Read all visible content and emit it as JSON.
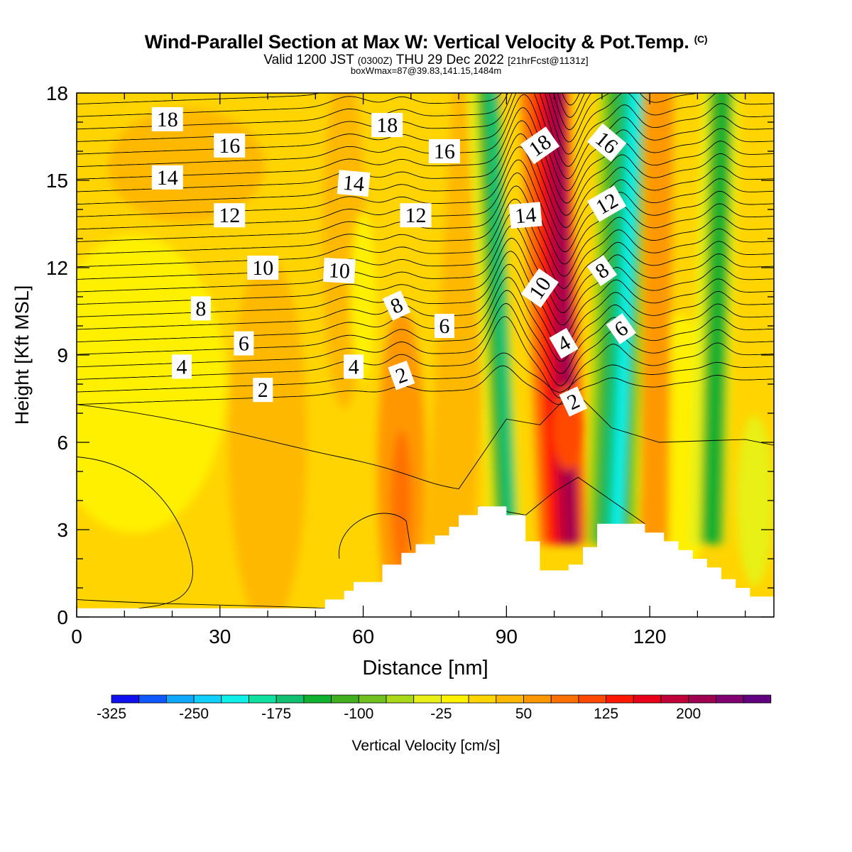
{
  "header": {
    "title_main": "Wind-Parallel Section at Max W: Vertical Velocity & Pot.Temp.",
    "title_mark": "(C)",
    "valid_prefix": "Valid 1200 JST",
    "valid_utc": "(0300Z)",
    "valid_date": "THU 29 Dec 2022",
    "forecast_info": "[21hrFcst@1131z]",
    "box_info": "boxWmax=87@39.83,141.15,1484m"
  },
  "colorbar": {
    "label": "Vertical Velocity [cm/s]",
    "colors": [
      "#1010f0",
      "#1058ff",
      "#10a8ff",
      "#10d0ff",
      "#10f0e8",
      "#10e0a0",
      "#10c070",
      "#10b030",
      "#40b020",
      "#70c020",
      "#a8d818",
      "#e8f018",
      "#fff000",
      "#ffd400",
      "#ffb800",
      "#ff9800",
      "#ff7000",
      "#ff4800",
      "#ff1800",
      "#e80018",
      "#c00038",
      "#a00050",
      "#800070",
      "#600080"
    ],
    "tick_labels": [
      "-325",
      "-250",
      "-175",
      "-100",
      "-25",
      "50",
      "125",
      "200"
    ],
    "tick_values": [
      -325,
      -250,
      -175,
      -100,
      -25,
      50,
      125,
      200
    ],
    "min": -325,
    "step": 25
  },
  "chart_data": {
    "type": "heatmap",
    "title": "Wind-Parallel Section at Max W: Vertical Velocity & Pot.Temp. (C)",
    "xlabel": "Distance [nm]",
    "ylabel": "Height [Kft MSL]",
    "xlim": [
      0,
      146
    ],
    "ylim": [
      0,
      18
    ],
    "x_ticks": [
      0,
      30,
      60,
      90,
      120
    ],
    "y_ticks": [
      0,
      3,
      6,
      9,
      12,
      15,
      18
    ],
    "colorbar_label": "Vertical Velocity [cm/s]",
    "terrain": [
      [
        0,
        0.3
      ],
      [
        52,
        0.3
      ],
      [
        52,
        0.6
      ],
      [
        56,
        0.6
      ],
      [
        56,
        0.9
      ],
      [
        58,
        0.9
      ],
      [
        58,
        1.2
      ],
      [
        64,
        1.2
      ],
      [
        64,
        1.8
      ],
      [
        68,
        1.8
      ],
      [
        68,
        2.2
      ],
      [
        71,
        2.2
      ],
      [
        71,
        2.5
      ],
      [
        75,
        2.5
      ],
      [
        75,
        2.8
      ],
      [
        78,
        2.8
      ],
      [
        78,
        3.1
      ],
      [
        80,
        3.1
      ],
      [
        80,
        3.5
      ],
      [
        84,
        3.5
      ],
      [
        84,
        3.8
      ],
      [
        90,
        3.8
      ],
      [
        90,
        3.5
      ],
      [
        94,
        3.5
      ],
      [
        94,
        2.6
      ],
      [
        97,
        2.6
      ],
      [
        97,
        1.6
      ],
      [
        103,
        1.6
      ],
      [
        103,
        1.8
      ],
      [
        106,
        1.8
      ],
      [
        106,
        2.4
      ],
      [
        109,
        2.4
      ],
      [
        109,
        3.2
      ],
      [
        119,
        3.2
      ],
      [
        119,
        2.9
      ],
      [
        123,
        2.9
      ],
      [
        123,
        2.6
      ],
      [
        126,
        2.6
      ],
      [
        126,
        2.3
      ],
      [
        129,
        2.3
      ],
      [
        129,
        2.0
      ],
      [
        132,
        2.0
      ],
      [
        132,
        1.7
      ],
      [
        135,
        1.7
      ],
      [
        135,
        1.3
      ],
      [
        138,
        1.3
      ],
      [
        138,
        1.0
      ],
      [
        141,
        1.0
      ],
      [
        141,
        0.7
      ],
      [
        143,
        0.7
      ],
      [
        143,
        0.7
      ],
      [
        146,
        0.7
      ]
    ],
    "vertical_velocity_features": [
      {
        "x": 68,
        "y": 4.0,
        "value": 80
      },
      {
        "x": 91,
        "y": 12.0,
        "value": -150
      },
      {
        "x": 101,
        "y": 14.5,
        "value": 200
      },
      {
        "x": 103,
        "y": 6.5,
        "value": 100
      },
      {
        "x": 114,
        "y": 16.0,
        "value": -200
      },
      {
        "x": 134,
        "y": 13.0,
        "value": -100
      },
      {
        "x": 140,
        "y": 4.0,
        "value": -25
      }
    ],
    "theta_contour_labels": [
      {
        "text": "18",
        "x": 19,
        "y": 17.1
      },
      {
        "text": "16",
        "x": 32,
        "y": 16.2
      },
      {
        "text": "14",
        "x": 19,
        "y": 15.1
      },
      {
        "text": "12",
        "x": 32,
        "y": 13.8
      },
      {
        "text": "10",
        "x": 39,
        "y": 12.0
      },
      {
        "text": "8",
        "x": 26,
        "y": 10.6
      },
      {
        "text": "6",
        "x": 35,
        "y": 9.4
      },
      {
        "text": "4",
        "x": 22,
        "y": 8.6
      },
      {
        "text": "2",
        "x": 39,
        "y": 7.8
      },
      {
        "text": "18",
        "x": 65,
        "y": 16.9
      },
      {
        "text": "16",
        "x": 77,
        "y": 16.0
      },
      {
        "text": "14",
        "x": 58,
        "y": 14.9
      },
      {
        "text": "12",
        "x": 71,
        "y": 13.8
      },
      {
        "text": "10",
        "x": 55,
        "y": 11.9
      },
      {
        "text": "8",
        "x": 67,
        "y": 10.7
      },
      {
        "text": "6",
        "x": 77,
        "y": 10.0
      },
      {
        "text": "4",
        "x": 58,
        "y": 8.6
      },
      {
        "text": "2",
        "x": 68,
        "y": 8.3
      },
      {
        "text": "18",
        "x": 97,
        "y": 16.2
      },
      {
        "text": "16",
        "x": 111,
        "y": 16.3
      },
      {
        "text": "14",
        "x": 94,
        "y": 13.8
      },
      {
        "text": "12",
        "x": 111,
        "y": 14.2
      },
      {
        "text": "10",
        "x": 97,
        "y": 11.3
      },
      {
        "text": "8",
        "x": 110,
        "y": 11.9
      },
      {
        "text": "6",
        "x": 114,
        "y": 9.9
      },
      {
        "text": "4",
        "x": 102,
        "y": 9.4
      },
      {
        "text": "2",
        "x": 104,
        "y": 7.4
      }
    ]
  }
}
